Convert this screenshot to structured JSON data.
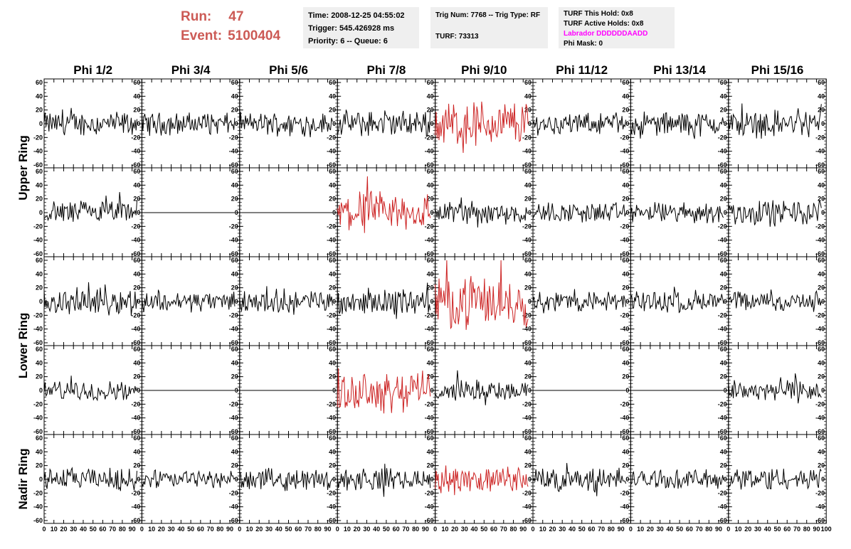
{
  "header": {
    "run_label": "Run:",
    "run_value": "47",
    "event_label": "Event:",
    "event_value": "5100404"
  },
  "info_box_1": {
    "time": "Time: 2008-12-25 04:55:02",
    "trigger": "Trigger: 545.426928 ms",
    "priority": "Priority: 6 -- Queue: 6"
  },
  "info_box_2": {
    "trig": "Trig Num: 7768 -- Trig Type: RF",
    "turf": "TURF: 73313"
  },
  "info_box_3": {
    "this_hold": "TURF This Hold: 0x8",
    "active_holds": "TURF Active Holds: 0x8",
    "labrador": "Labrador DDDDDDAADD",
    "phi_mask": "Phi Mask: 0"
  },
  "colors": {
    "normal_trace": "#000000",
    "triggered_trace": "#cc2222",
    "header_red": "#cc5a55",
    "labrador_magenta": "#ff00ff",
    "box_bg": "#efefef"
  },
  "chart_data": {
    "type": "line",
    "columns": [
      "Phi 1/2",
      "Phi 3/4",
      "Phi 5/6",
      "Phi 7/8",
      "Phi 9/10",
      "Phi 11/12",
      "Phi 13/14",
      "Phi 15/16"
    ],
    "ring_labels": [
      "Upper Ring",
      "Lower Ring",
      "Nadir Ring"
    ],
    "rows": 5,
    "xlim": [
      0,
      100
    ],
    "ylim": [
      -60,
      60
    ],
    "x_ticks": [
      0,
      10,
      20,
      30,
      40,
      50,
      60,
      70,
      80,
      90,
      100
    ],
    "y_ticks": [
      60,
      40,
      20,
      0,
      -20,
      -40,
      -60
    ],
    "x_tick_labels": [
      "0",
      "10",
      "20",
      "30",
      "40",
      "50",
      "60",
      "70",
      "80",
      "90",
      "100"
    ],
    "y_tick_labels": [
      "60",
      "40",
      "20",
      "0",
      "-20",
      "-40",
      "-60"
    ],
    "samples_per_trace": 96,
    "panels": [
      [
        "noise",
        "noise",
        "noise",
        "noise",
        "triggered",
        "noise",
        "noise",
        "noise"
      ],
      [
        "noise",
        "flat",
        "flat",
        "triggered",
        "noise",
        "noise",
        "noise",
        "noise"
      ],
      [
        "noise",
        "noise",
        "noise",
        "noise",
        "triggered",
        "noise",
        "noise",
        "noise"
      ],
      [
        "noise",
        "flat",
        "flat",
        "triggered",
        "noise",
        "flat",
        "flat",
        "noise"
      ],
      [
        "noise",
        "noise",
        "noise",
        "noise",
        "triggered",
        "noise",
        "noise",
        "noise"
      ]
    ],
    "amplitudes": [
      [
        14,
        13,
        13,
        15,
        28,
        12,
        14,
        16
      ],
      [
        14,
        0,
        0,
        24,
        14,
        12,
        12,
        15
      ],
      [
        15,
        12,
        14,
        15,
        30,
        12,
        13,
        12
      ],
      [
        11,
        0,
        0,
        24,
        12,
        0,
        0,
        14
      ],
      [
        13,
        11,
        12,
        13,
        15,
        14,
        11,
        14
      ]
    ],
    "grid": false
  }
}
